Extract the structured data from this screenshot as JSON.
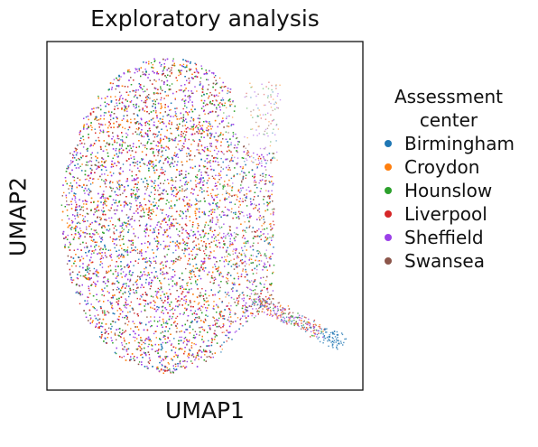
{
  "chart_data": {
    "type": "scatter",
    "title": "Exploratory analysis",
    "xlabel": "UMAP1",
    "ylabel": "UMAP2",
    "legend": {
      "title": "Assessment center",
      "title_lines": [
        "Assessment",
        "center"
      ],
      "placement": "right"
    },
    "grid": false,
    "axis_ticks": false,
    "series": [
      {
        "name": "Birmingham",
        "color": "#1f77b4"
      },
      {
        "name": "Croydon",
        "color": "#ff7f0e"
      },
      {
        "name": "Hounslow",
        "color": "#2ca02c"
      },
      {
        "name": "Liverpool",
        "color": "#d62728"
      },
      {
        "name": "Sheffield",
        "color": "#9b40e8"
      },
      {
        "name": "Swansea",
        "color": "#8c564b"
      }
    ]
  }
}
